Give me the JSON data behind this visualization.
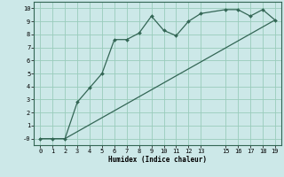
{
  "xlabel": "Humidex (Indice chaleur)",
  "bg_color": "#cce8e8",
  "grid_color": "#99ccbb",
  "line_color": "#336655",
  "line1_x": [
    0,
    1,
    2,
    3,
    4,
    5,
    6,
    7,
    8,
    9,
    10,
    11,
    12,
    13,
    15,
    16,
    17,
    18,
    19
  ],
  "line1_y": [
    0.0,
    0.0,
    0.0,
    2.8,
    3.9,
    5.0,
    7.6,
    7.6,
    8.1,
    9.4,
    8.3,
    7.9,
    9.0,
    9.6,
    9.9,
    9.9,
    9.4,
    9.9,
    9.1
  ],
  "line2_x": [
    0,
    1,
    2,
    19
  ],
  "line2_y": [
    0.0,
    0.0,
    0.0,
    9.1
  ],
  "xlim": [
    -0.5,
    19.5
  ],
  "ylim": [
    -0.5,
    10.5
  ],
  "xticks": [
    0,
    1,
    2,
    3,
    4,
    5,
    6,
    7,
    8,
    9,
    10,
    11,
    12,
    13,
    15,
    16,
    17,
    18,
    19
  ],
  "yticks": [
    0,
    1,
    2,
    3,
    4,
    5,
    6,
    7,
    8,
    9,
    10
  ],
  "ytick_labels": [
    "-0",
    "1",
    "2",
    "3",
    "4",
    "5",
    "6",
    "7",
    "8",
    "9",
    "10"
  ]
}
